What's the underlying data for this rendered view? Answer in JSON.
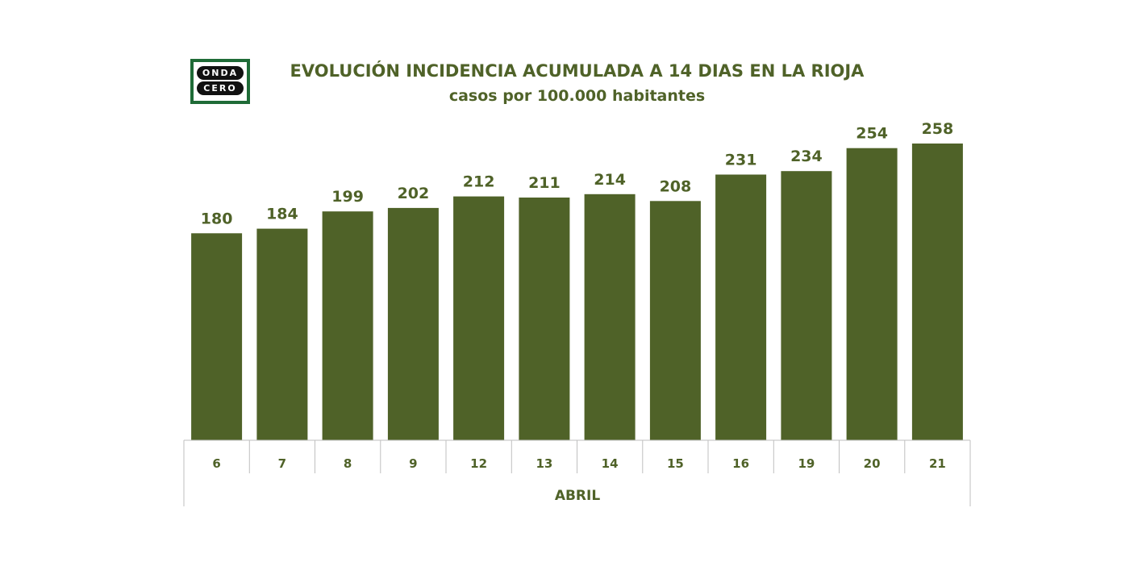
{
  "logo": {
    "line1": "ONDA",
    "line2": "CERO"
  },
  "chart_data": {
    "type": "bar",
    "title": "EVOLUCIÓN INCIDENCIA ACUMULADA A 14 DIAS EN LA RIOJA",
    "subtitle": "casos por 100.000 habitantes",
    "xlabel": "ABRIL",
    "ylabel": "",
    "categories": [
      "6",
      "7",
      "8",
      "9",
      "12",
      "13",
      "14",
      "15",
      "16",
      "19",
      "20",
      "21"
    ],
    "values": [
      180,
      184,
      199,
      202,
      212,
      211,
      214,
      208,
      231,
      234,
      254,
      258
    ],
    "ylim": [
      0,
      258
    ],
    "grid": false,
    "legend": "none",
    "colors": {
      "bar": "#4f6228",
      "text": "#4f6228",
      "axis": "#bfbfbf"
    }
  }
}
